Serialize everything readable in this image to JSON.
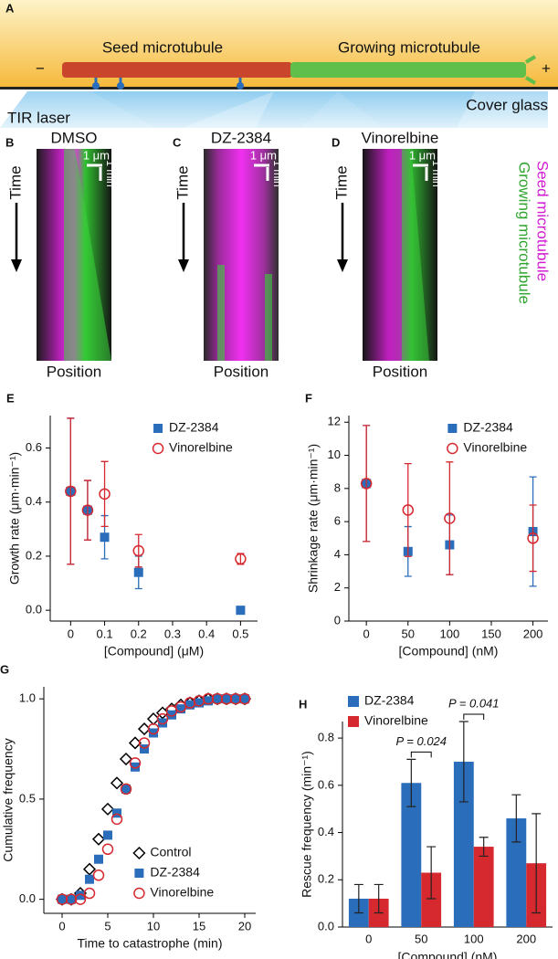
{
  "diagram": {
    "label": "A",
    "minus": "−",
    "plus": "+",
    "seed": "Seed microtubule",
    "growing": "Growing microtubule",
    "cover": "Cover glass",
    "laser": "TIR laser"
  },
  "kymographs": {
    "panels": [
      {
        "label": "B",
        "title": "DMSO"
      },
      {
        "label": "C",
        "title": "DZ-2384"
      },
      {
        "label": "D",
        "title": "Vinorelbine"
      }
    ],
    "time": "Time",
    "position": "Position",
    "scale_x": "1 μm",
    "scale_t": "1 min",
    "seed": "Seed microtubule",
    "growing": "Growing microtubule"
  },
  "chart_data": [
    {
      "type": "scatter",
      "label": "E",
      "xlabel": "[Compound] (μM)",
      "ylabel": "Growth rate (μm·min⁻¹)",
      "legend": "upper right",
      "x": [
        0,
        0.05,
        0.1,
        0.2,
        0.5
      ],
      "xlim": [
        -0.06,
        0.55
      ],
      "xticks": [
        0,
        0.1,
        0.2,
        0.3,
        0.4,
        0.5
      ],
      "ylim": [
        -0.04,
        0.72
      ],
      "yticks": [
        {
          "value": 0,
          "label": "0.0"
        },
        0.2,
        0.4,
        0.6
      ],
      "series": [
        {
          "name": "DZ-2384",
          "color": "#2a6ebb",
          "marker": "square",
          "values": [
            0.44,
            0.37,
            0.27,
            0.14,
            0.0
          ],
          "errors": [
            0.27,
            0.11,
            0.08,
            0.06,
            0
          ]
        },
        {
          "name": "Vinorelbine",
          "color": "#d6282f",
          "marker": "circle-open",
          "values": [
            0.44,
            0.37,
            0.43,
            0.22,
            0.19
          ],
          "errors": [
            0.27,
            0.11,
            0.12,
            0.06,
            0.02
          ]
        }
      ]
    },
    {
      "type": "scatter",
      "label": "F",
      "xlabel": "[Compound] (nM)",
      "ylabel": "Shrinkage rate (μm·min⁻¹)",
      "legend": "upper right",
      "x": [
        0,
        50,
        100,
        200
      ],
      "xlim": [
        -21,
        218
      ],
      "xticks": [
        0,
        50,
        100,
        150,
        200
      ],
      "ylim": [
        0,
        12.4
      ],
      "yticks": [
        0,
        2,
        4,
        6,
        8,
        10,
        12
      ],
      "series": [
        {
          "name": "DZ-2384",
          "color": "#2a6ebb",
          "marker": "square",
          "values": [
            8.3,
            4.2,
            4.6,
            5.4
          ],
          "errors": [
            3.5,
            1.5,
            1.8,
            3.3
          ]
        },
        {
          "name": "Vinorelbine",
          "color": "#d6282f",
          "marker": "circle-open",
          "values": [
            8.3,
            6.7,
            6.2,
            5.0
          ],
          "errors": [
            3.5,
            2.8,
            3.4,
            2.0
          ]
        }
      ]
    },
    {
      "type": "scatter",
      "label": "G",
      "xlabel": "Time to catastrophe (min)",
      "ylabel": "Cumulative frequency",
      "legend": "lower right",
      "x": [
        0,
        1,
        2,
        3,
        4,
        5,
        6,
        7,
        8,
        9,
        10,
        11,
        12,
        13,
        14,
        15,
        16,
        17,
        18,
        19,
        20
      ],
      "xlim": [
        -2,
        21.2
      ],
      "xticks": [
        0,
        5,
        10,
        15,
        20
      ],
      "ylim": [
        -0.07,
        1.06
      ],
      "yticks": [
        {
          "value": 0,
          "label": "0.0"
        },
        {
          "value": 0.5,
          "label": "0.5"
        },
        {
          "value": 1,
          "label": "1.0"
        }
      ],
      "series": [
        {
          "name": "Control",
          "color": "#000000",
          "marker": "diamond-open",
          "values": [
            0,
            0,
            0.03,
            0.15,
            0.3,
            0.45,
            0.58,
            0.7,
            0.78,
            0.85,
            0.9,
            0.93,
            0.95,
            0.97,
            0.98,
            0.99,
            1,
            1,
            1,
            1,
            1
          ]
        },
        {
          "name": "DZ-2384",
          "color": "#2a6ebb",
          "marker": "square",
          "values": [
            0,
            0,
            0.02,
            0.1,
            0.2,
            0.32,
            0.43,
            0.55,
            0.66,
            0.75,
            0.83,
            0.88,
            0.92,
            0.95,
            0.97,
            0.98,
            0.99,
            1,
            1,
            1,
            1
          ]
        },
        {
          "name": "Vinorelbine",
          "color": "#d6282f",
          "marker": "circle-open",
          "values": [
            0,
            0,
            0,
            0.03,
            0.12,
            0.25,
            0.4,
            0.55,
            0.68,
            0.78,
            0.85,
            0.9,
            0.94,
            0.96,
            0.98,
            0.99,
            1,
            1,
            1,
            1,
            1
          ]
        }
      ]
    },
    {
      "type": "bar",
      "label": "H",
      "xlabel": "[Compound] (nM)",
      "ylabel": "Rescue frequency (min⁻¹)",
      "legend": "upper left",
      "categories": [
        "0",
        "50",
        "100",
        "200"
      ],
      "ylim": [
        0,
        0.87
      ],
      "yticks": [
        {
          "value": 0,
          "label": "0.0"
        },
        0.2,
        0.4,
        0.6,
        0.8
      ],
      "annotations": [
        "P = 0.024",
        "P = 0.041"
      ],
      "series": [
        {
          "name": "DZ-2384",
          "color": "#2a6ebb",
          "values": [
            0.12,
            0.61,
            0.7,
            0.46
          ],
          "errors": [
            0.06,
            0.1,
            0.17,
            0.1
          ]
        },
        {
          "name": "Vinorelbine",
          "color": "#d6282f",
          "values": [
            0.12,
            0.23,
            0.34,
            0.27
          ],
          "errors": [
            0.06,
            0.11,
            0.04,
            0.21
          ]
        }
      ]
    }
  ]
}
